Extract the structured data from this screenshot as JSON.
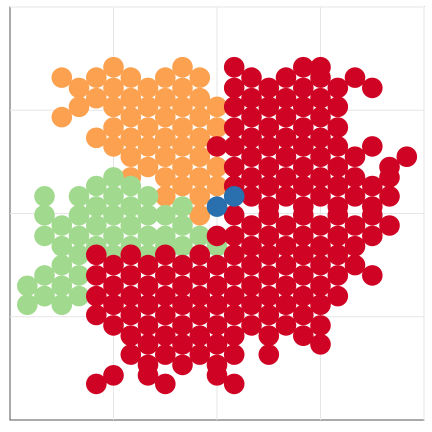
{
  "chart_data": {
    "type": "scatter",
    "title": "",
    "xlabel": "",
    "ylabel": "",
    "grid": true,
    "xlim": [
      0,
      24
    ],
    "ylim": [
      0,
      24
    ],
    "xticks": [
      6,
      12,
      18,
      24
    ],
    "yticks": [
      6,
      12,
      18,
      24
    ],
    "colors": {
      "orange": "#fca14f",
      "green": "#a1d98e",
      "red": "#cf0323",
      "blue": "#2a6fae"
    },
    "series": [
      {
        "color": "orange",
        "points": [
          [
            3.0,
            19.9
          ],
          [
            4.0,
            19.3
          ],
          [
            5.0,
            19.9
          ],
          [
            6.0,
            20.5
          ],
          [
            7.0,
            19.9
          ],
          [
            9.0,
            19.9
          ],
          [
            10.0,
            20.5
          ],
          [
            11.0,
            19.9
          ],
          [
            4.0,
            18.2
          ],
          [
            5.0,
            18.7
          ],
          [
            6.0,
            19.3
          ],
          [
            7.0,
            18.7
          ],
          [
            8.0,
            19.3
          ],
          [
            9.0,
            18.7
          ],
          [
            10.0,
            19.3
          ],
          [
            11.0,
            18.7
          ],
          [
            12.0,
            18.2
          ],
          [
            6.0,
            18.2
          ],
          [
            7.0,
            17.6
          ],
          [
            8.0,
            18.2
          ],
          [
            9.0,
            17.6
          ],
          [
            10.0,
            18.2
          ],
          [
            11.0,
            17.6
          ],
          [
            12.0,
            17.0
          ],
          [
            3.0,
            17.6
          ],
          [
            6.0,
            17.0
          ],
          [
            7.0,
            16.4
          ],
          [
            8.0,
            17.0
          ],
          [
            9.0,
            16.4
          ],
          [
            10.0,
            17.0
          ],
          [
            11.0,
            16.4
          ],
          [
            12.0,
            15.9
          ],
          [
            5.0,
            16.4
          ],
          [
            6.0,
            15.9
          ],
          [
            7.0,
            15.3
          ],
          [
            8.0,
            15.9
          ],
          [
            9.0,
            15.3
          ],
          [
            10.0,
            15.9
          ],
          [
            11.0,
            15.3
          ],
          [
            12.0,
            14.7
          ],
          [
            7.0,
            14.1
          ],
          [
            8.0,
            14.7
          ],
          [
            9.0,
            14.1
          ],
          [
            10.0,
            14.7
          ],
          [
            11.0,
            14.1
          ],
          [
            12.0,
            13.6
          ],
          [
            9.0,
            13.0
          ],
          [
            10.0,
            13.6
          ],
          [
            11.0,
            13.0
          ],
          [
            11.0,
            11.9
          ]
        ]
      },
      {
        "color": "green",
        "points": [
          [
            2.0,
            13.0
          ],
          [
            4.0,
            13.0
          ],
          [
            5.0,
            13.6
          ],
          [
            6.0,
            14.1
          ],
          [
            2.0,
            11.9
          ],
          [
            3.0,
            11.3
          ],
          [
            4.0,
            11.9
          ],
          [
            5.0,
            12.4
          ],
          [
            6.0,
            13.0
          ],
          [
            7.0,
            13.6
          ],
          [
            8.0,
            13.0
          ],
          [
            2.0,
            10.7
          ],
          [
            3.0,
            10.1
          ],
          [
            4.0,
            10.7
          ],
          [
            5.0,
            11.3
          ],
          [
            6.0,
            11.9
          ],
          [
            7.0,
            12.4
          ],
          [
            8.0,
            11.9
          ],
          [
            9.0,
            11.9
          ],
          [
            10.0,
            12.4
          ],
          [
            3.0,
            9.0
          ],
          [
            4.0,
            9.6
          ],
          [
            5.0,
            10.1
          ],
          [
            6.0,
            10.7
          ],
          [
            7.0,
            11.3
          ],
          [
            8.0,
            10.7
          ],
          [
            9.0,
            10.7
          ],
          [
            10.0,
            11.3
          ],
          [
            11.0,
            10.7
          ],
          [
            2.0,
            8.4
          ],
          [
            3.0,
            7.8
          ],
          [
            4.0,
            8.4
          ],
          [
            6.0,
            9.6
          ],
          [
            7.0,
            10.1
          ],
          [
            8.0,
            9.6
          ],
          [
            9.0,
            10.1
          ],
          [
            10.0,
            10.1
          ],
          [
            11.0,
            9.6
          ],
          [
            12.0,
            10.1
          ],
          [
            1.0,
            7.8
          ],
          [
            2.0,
            7.2
          ],
          [
            3.0,
            6.7
          ],
          [
            4.0,
            7.2
          ],
          [
            1.0,
            6.7
          ],
          [
            2.0,
            7.2
          ]
        ]
      },
      {
        "color": "red",
        "points": [
          [
            13.0,
            20.5
          ],
          [
            17.0,
            20.5
          ],
          [
            18.0,
            20.5
          ],
          [
            20.0,
            19.9
          ],
          [
            21.0,
            19.3
          ],
          [
            13.0,
            19.3
          ],
          [
            14.0,
            19.9
          ],
          [
            15.0,
            19.3
          ],
          [
            16.0,
            19.9
          ],
          [
            17.0,
            19.3
          ],
          [
            18.0,
            19.9
          ],
          [
            19.0,
            19.3
          ],
          [
            13.0,
            18.2
          ],
          [
            14.0,
            18.7
          ],
          [
            15.0,
            18.2
          ],
          [
            16.0,
            18.7
          ],
          [
            17.0,
            18.2
          ],
          [
            18.0,
            18.7
          ],
          [
            19.0,
            18.2
          ],
          [
            13.0,
            17.0
          ],
          [
            14.0,
            17.6
          ],
          [
            15.0,
            17.0
          ],
          [
            16.0,
            17.6
          ],
          [
            17.0,
            17.0
          ],
          [
            18.0,
            17.6
          ],
          [
            19.0,
            17.0
          ],
          [
            12.0,
            15.9
          ],
          [
            13.0,
            15.9
          ],
          [
            14.0,
            16.4
          ],
          [
            15.0,
            15.9
          ],
          [
            16.0,
            16.4
          ],
          [
            17.0,
            15.9
          ],
          [
            18.0,
            16.4
          ],
          [
            19.0,
            15.9
          ],
          [
            20.0,
            15.3
          ],
          [
            23.0,
            15.3
          ],
          [
            13.0,
            14.7
          ],
          [
            14.0,
            15.3
          ],
          [
            15.0,
            14.7
          ],
          [
            16.0,
            15.3
          ],
          [
            17.0,
            14.7
          ],
          [
            18.0,
            15.3
          ],
          [
            19.0,
            14.7
          ],
          [
            21.0,
            15.9
          ],
          [
            22.0,
            14.7
          ],
          [
            13.0,
            13.6
          ],
          [
            14.0,
            14.1
          ],
          [
            15.0,
            13.6
          ],
          [
            16.0,
            14.1
          ],
          [
            17.0,
            13.6
          ],
          [
            18.0,
            14.1
          ],
          [
            19.0,
            13.6
          ],
          [
            20.0,
            14.1
          ],
          [
            21.0,
            13.6
          ],
          [
            22.0,
            14.1
          ],
          [
            14.0,
            13.0
          ],
          [
            15.0,
            12.4
          ],
          [
            16.0,
            13.0
          ],
          [
            17.0,
            12.4
          ],
          [
            18.0,
            13.0
          ],
          [
            19.0,
            12.4
          ],
          [
            20.0,
            13.0
          ],
          [
            21.0,
            12.4
          ],
          [
            22.0,
            13.0
          ],
          [
            13.0,
            11.9
          ],
          [
            14.0,
            11.3
          ],
          [
            15.0,
            11.9
          ],
          [
            16.0,
            11.3
          ],
          [
            17.0,
            11.9
          ],
          [
            18.0,
            11.3
          ],
          [
            19.0,
            11.9
          ],
          [
            20.0,
            11.3
          ],
          [
            21.0,
            11.9
          ],
          [
            22.0,
            11.3
          ],
          [
            12.0,
            10.7
          ],
          [
            13.0,
            10.7
          ],
          [
            14.0,
            10.1
          ],
          [
            15.0,
            10.7
          ],
          [
            16.0,
            10.1
          ],
          [
            17.0,
            10.7
          ],
          [
            18.0,
            10.1
          ],
          [
            19.0,
            10.7
          ],
          [
            20.0,
            10.1
          ],
          [
            21.0,
            10.7
          ],
          [
            5.0,
            9.6
          ],
          [
            6.0,
            9.0
          ],
          [
            7.0,
            9.6
          ],
          [
            8.0,
            9.0
          ],
          [
            9.0,
            9.6
          ],
          [
            10.0,
            9.0
          ],
          [
            11.0,
            9.6
          ],
          [
            12.0,
            9.0
          ],
          [
            13.0,
            9.6
          ],
          [
            14.0,
            9.0
          ],
          [
            15.0,
            9.6
          ],
          [
            16.0,
            9.0
          ],
          [
            17.0,
            9.6
          ],
          [
            18.0,
            9.0
          ],
          [
            19.0,
            9.6
          ],
          [
            20.0,
            9.0
          ],
          [
            5.0,
            8.4
          ],
          [
            6.0,
            7.8
          ],
          [
            7.0,
            8.4
          ],
          [
            8.0,
            7.8
          ],
          [
            9.0,
            8.4
          ],
          [
            10.0,
            7.8
          ],
          [
            11.0,
            8.4
          ],
          [
            12.0,
            7.8
          ],
          [
            13.0,
            8.4
          ],
          [
            14.0,
            7.8
          ],
          [
            15.0,
            8.4
          ],
          [
            16.0,
            7.8
          ],
          [
            17.0,
            8.4
          ],
          [
            18.0,
            7.8
          ],
          [
            19.0,
            8.4
          ],
          [
            21.0,
            8.4
          ],
          [
            5.0,
            7.2
          ],
          [
            6.0,
            6.7
          ],
          [
            7.0,
            7.2
          ],
          [
            8.0,
            6.7
          ],
          [
            9.0,
            7.2
          ],
          [
            10.0,
            6.7
          ],
          [
            11.0,
            7.2
          ],
          [
            12.0,
            6.7
          ],
          [
            13.0,
            7.2
          ],
          [
            14.0,
            6.7
          ],
          [
            15.0,
            7.2
          ],
          [
            16.0,
            6.7
          ],
          [
            17.0,
            7.2
          ],
          [
            18.0,
            6.7
          ],
          [
            19.0,
            7.2
          ],
          [
            5.0,
            6.1
          ],
          [
            6.0,
            5.5
          ],
          [
            7.0,
            6.1
          ],
          [
            8.0,
            5.5
          ],
          [
            9.0,
            6.1
          ],
          [
            10.0,
            5.5
          ],
          [
            11.0,
            6.1
          ],
          [
            12.0,
            5.5
          ],
          [
            13.0,
            6.1
          ],
          [
            14.0,
            5.5
          ],
          [
            15.0,
            6.1
          ],
          [
            16.0,
            5.5
          ],
          [
            17.0,
            6.1
          ],
          [
            18.0,
            5.5
          ],
          [
            7.0,
            4.9
          ],
          [
            8.0,
            4.4
          ],
          [
            9.0,
            4.9
          ],
          [
            10.0,
            4.4
          ],
          [
            11.0,
            4.9
          ],
          [
            12.0,
            4.4
          ],
          [
            13.0,
            4.9
          ],
          [
            15.0,
            4.9
          ],
          [
            17.0,
            4.9
          ],
          [
            18.0,
            4.4
          ],
          [
            7.0,
            3.8
          ],
          [
            8.0,
            3.2
          ],
          [
            9.0,
            3.8
          ],
          [
            10.0,
            3.2
          ],
          [
            11.0,
            3.8
          ],
          [
            12.0,
            3.2
          ],
          [
            13.0,
            3.8
          ],
          [
            15.0,
            3.8
          ],
          [
            5.0,
            2.1
          ],
          [
            6.0,
            2.6
          ],
          [
            8.0,
            2.6
          ],
          [
            9.0,
            2.1
          ],
          [
            12.0,
            2.6
          ],
          [
            13.0,
            2.1
          ]
        ]
      },
      {
        "color": "blue",
        "points": [
          [
            12.0,
            12.4
          ],
          [
            13.0,
            13.0
          ]
        ]
      }
    ]
  }
}
